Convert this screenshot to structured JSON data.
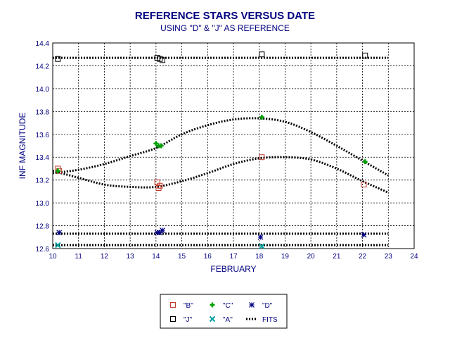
{
  "chart_data": {
    "type": "scatter",
    "title": "REFERENCE STARS VERSUS DATE",
    "subtitle": "USING \"D\" & \"J\" AS REFERENCE",
    "xlabel": "FEBRUARY",
    "ylabel": "INF MAGNITUDE",
    "xlim": [
      10,
      24
    ],
    "ylim": [
      12.6,
      14.4
    ],
    "x_ticks": [
      "10",
      "11",
      "12",
      "13",
      "14",
      "15",
      "16",
      "17",
      "18",
      "19",
      "20",
      "21",
      "22",
      "23",
      "24"
    ],
    "y_ticks": [
      "12.6",
      "12.8",
      "13.0",
      "13.2",
      "13.4",
      "13.6",
      "13.8",
      "14.0",
      "14.2",
      "14.4"
    ],
    "grid": true,
    "legend_position": "bottom-center",
    "series": [
      {
        "name": "\"B\"",
        "marker": "square",
        "color": "#c0392b",
        "x": [
          10.2,
          10.25,
          14.05,
          14.1,
          14.15,
          18.1,
          22.05
        ],
        "y": [
          13.3,
          13.28,
          13.18,
          13.13,
          13.15,
          13.4,
          13.16
        ]
      },
      {
        "name": "\"C\"",
        "marker": "plus",
        "color": "#00a000",
        "x": [
          10.2,
          14.0,
          14.1,
          14.2,
          18.1,
          22.1
        ],
        "y": [
          13.28,
          13.52,
          13.5,
          13.5,
          13.75,
          13.36
        ]
      },
      {
        "name": "\"D\"",
        "marker": "asterisk",
        "color": "#000080",
        "x": [
          10.25,
          14.05,
          14.15,
          14.25,
          18.05,
          22.05
        ],
        "y": [
          12.74,
          12.74,
          12.74,
          12.76,
          12.7,
          12.72
        ]
      },
      {
        "name": "\"J\"",
        "marker": "square",
        "color": "#000000",
        "x": [
          10.2,
          14.05,
          14.15,
          14.25,
          18.1,
          22.1
        ],
        "y": [
          14.26,
          14.27,
          14.26,
          14.25,
          14.3,
          14.29
        ]
      },
      {
        "name": "\"A\"",
        "marker": "x",
        "color": "#00a0a0",
        "x": [
          10.2,
          18.1
        ],
        "y": [
          12.63,
          12.62
        ]
      }
    ],
    "fits": {
      "name": "FITS",
      "curves": [
        {
          "x": [
            10,
            23
          ],
          "y": [
            14.27,
            14.27
          ]
        },
        {
          "x": [
            10,
            23
          ],
          "y": [
            12.73,
            12.73
          ]
        },
        {
          "x": [
            10,
            23
          ],
          "y": [
            12.63,
            12.63
          ]
        },
        {
          "x": [
            10,
            11,
            12,
            13,
            14,
            15,
            16,
            17,
            18,
            19,
            20,
            21,
            22,
            23
          ],
          "y": [
            13.26,
            13.29,
            13.34,
            13.41,
            13.48,
            13.6,
            13.68,
            13.73,
            13.74,
            13.71,
            13.62,
            13.5,
            13.37,
            13.24
          ]
        },
        {
          "x": [
            10,
            11,
            12,
            13,
            14,
            15,
            16,
            17,
            18,
            19,
            20,
            21,
            22,
            23
          ],
          "y": [
            13.28,
            13.22,
            13.16,
            13.14,
            13.14,
            13.19,
            13.26,
            13.34,
            13.39,
            13.4,
            13.38,
            13.3,
            13.19,
            13.09
          ]
        }
      ]
    }
  }
}
